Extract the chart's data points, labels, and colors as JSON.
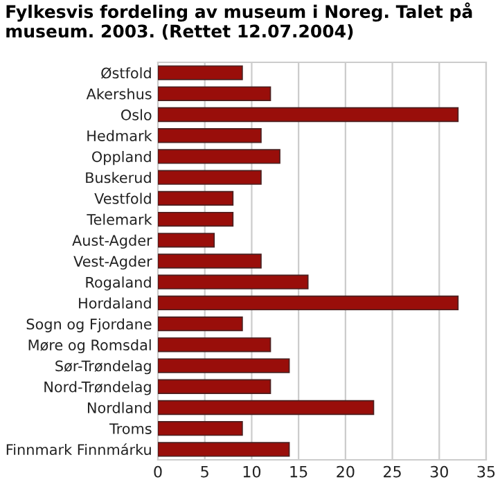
{
  "chart_data": {
    "type": "bar",
    "orientation": "horizontal",
    "title": "Fylkesvis fordeling av museum i Noreg. Talet på museum. 2003. (Rettet 12.07.2004)",
    "categories": [
      "Østfold",
      "Akershus",
      "Oslo",
      "Hedmark",
      "Oppland",
      "Buskerud",
      "Vestfold",
      "Telemark",
      "Aust-Agder",
      "Vest-Agder",
      "Rogaland",
      "Hordaland",
      "Sogn og Fjordane",
      "Møre og Romsdal",
      "Sør-Trøndelag",
      "Nord-Trøndelag",
      "Nordland",
      "Troms",
      "Finnmark Finnmárku"
    ],
    "values": [
      9,
      12,
      32,
      11,
      13,
      11,
      8,
      8,
      6,
      11,
      16,
      32,
      9,
      12,
      14,
      12,
      23,
      9,
      14
    ],
    "color": "#990e0a",
    "xlim": [
      0,
      35
    ],
    "xticks": [
      0,
      5,
      10,
      15,
      20,
      25,
      30,
      35
    ],
    "grid": true
  }
}
